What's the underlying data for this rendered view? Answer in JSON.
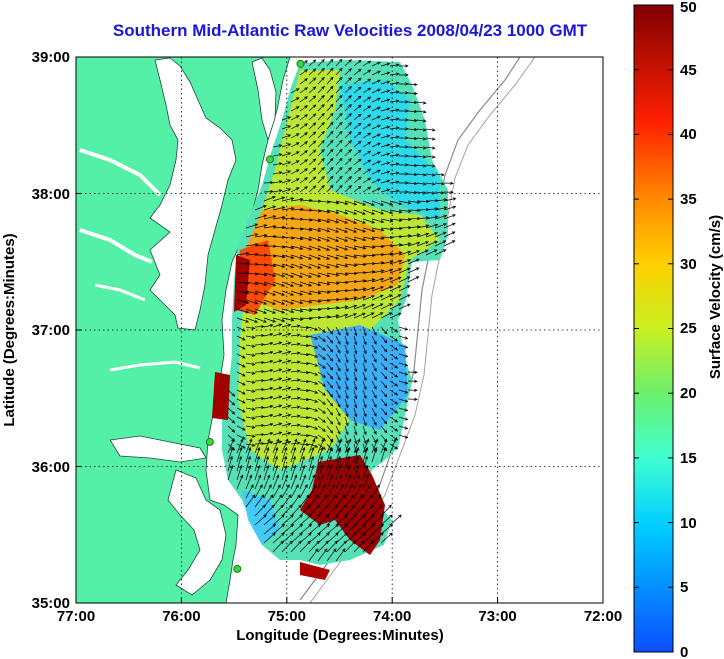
{
  "title": "Southern Mid-Atlantic Raw Velocities 2008/04/23 1000 GMT",
  "map": {
    "xlabel": "Longitude (Degrees:Minutes)",
    "ylabel": "Latitude (Degrees:Minutes)",
    "lon_range": [
      -77,
      -72
    ],
    "lat_range": [
      35,
      39
    ],
    "lon_ticks": [
      "77:00",
      "76:00",
      "75:00",
      "74:00",
      "73:00",
      "72:00"
    ],
    "lat_ticks": [
      "35:00",
      "36:00",
      "37:00",
      "38:00",
      "39:00"
    ],
    "grid": "dotted"
  },
  "colorbar": {
    "label": "Surface Velocity (cm/s)",
    "range": [
      0,
      50
    ],
    "ticks": [
      "0",
      "5",
      "10",
      "15",
      "20",
      "25",
      "30",
      "35",
      "40",
      "45",
      "50"
    ],
    "colormap": "jet"
  },
  "colors": {
    "land": "#55f0a8",
    "title": "#1a17d8",
    "station": "#3ed63e"
  },
  "stations": [
    {
      "lon": -74.87,
      "lat": 38.95
    },
    {
      "lon": -75.16,
      "lat": 38.25
    },
    {
      "lon": -75.73,
      "lat": 36.18
    },
    {
      "lon": -75.47,
      "lat": 35.25
    }
  ]
}
